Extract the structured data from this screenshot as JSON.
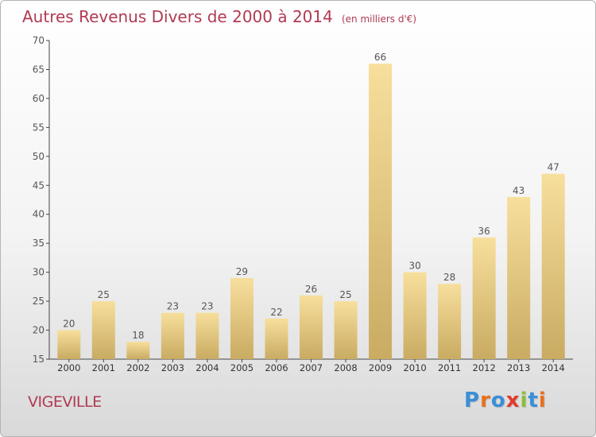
{
  "header": {
    "title": "Autres Revenus Divers de 2000 à 2014",
    "subtitle": "(en milliers d'€)"
  },
  "footer": {
    "commune": "VIGEVILLE",
    "logo_text": "Proxiti"
  },
  "colors": {
    "title": "#b03a52",
    "bar_light": "#f7df9c",
    "bar_dark": "#c9ab62",
    "logo_letters": [
      "#3a8fd6",
      "#e8701e",
      "#3a8fd6",
      "#e23a2a",
      "#8bbf3a",
      "#3a8fd6",
      "#e8701e"
    ]
  },
  "chart_data": {
    "type": "bar",
    "categories": [
      "2000",
      "2001",
      "2002",
      "2003",
      "2004",
      "2005",
      "2006",
      "2007",
      "2008",
      "2009",
      "2010",
      "2011",
      "2012",
      "2013",
      "2014"
    ],
    "values": [
      20,
      25,
      18,
      23,
      23,
      29,
      22,
      26,
      25,
      66,
      30,
      28,
      36,
      43,
      47
    ],
    "ylim": [
      15,
      70
    ],
    "yticks": [
      15,
      20,
      25,
      30,
      35,
      40,
      45,
      50,
      55,
      60,
      65,
      70
    ],
    "grid": false,
    "data_labels": true
  }
}
